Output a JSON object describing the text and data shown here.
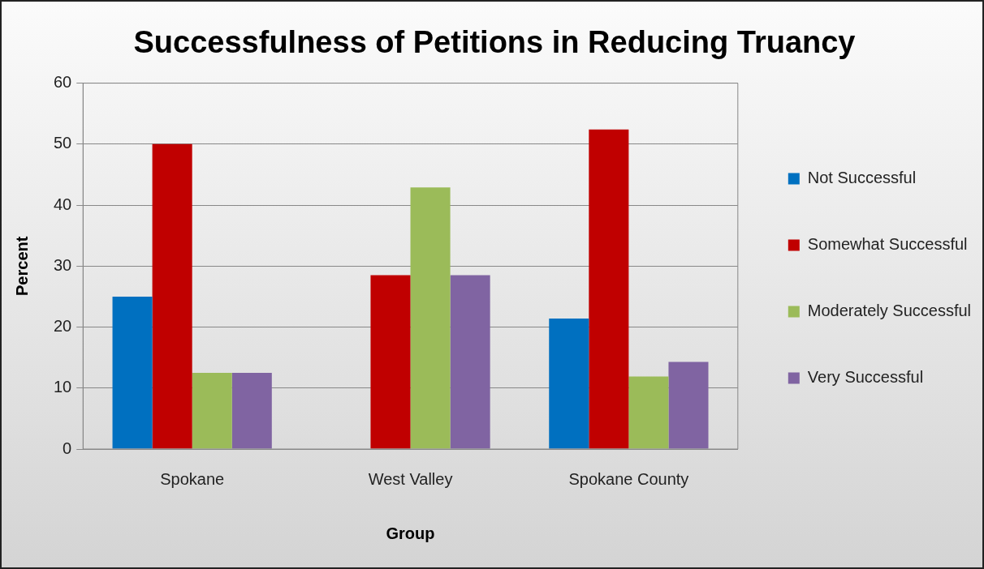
{
  "chart_data": {
    "type": "bar",
    "title": "Successfulness of Petitions in Reducing Truancy",
    "xlabel": "Group",
    "ylabel": "Percent",
    "categories": [
      "Spokane",
      "West Valley",
      "Spokane County"
    ],
    "series": [
      {
        "name": "Not Successful",
        "color": "#0070c0",
        "values": [
          25,
          0,
          21.4
        ]
      },
      {
        "name": "Somewhat Successful",
        "color": "#c00000",
        "values": [
          50,
          28.5,
          52.4
        ]
      },
      {
        "name": "Moderately Successful",
        "color": "#9bbb59",
        "values": [
          12.5,
          42.9,
          11.9
        ]
      },
      {
        "name": "Very Successful",
        "color": "#8064a2",
        "values": [
          12.5,
          28.5,
          14.3
        ]
      }
    ],
    "ylim": [
      0,
      60
    ],
    "yticks": [
      0,
      10,
      20,
      30,
      40,
      50,
      60
    ],
    "grid": "y",
    "legend": "right"
  }
}
